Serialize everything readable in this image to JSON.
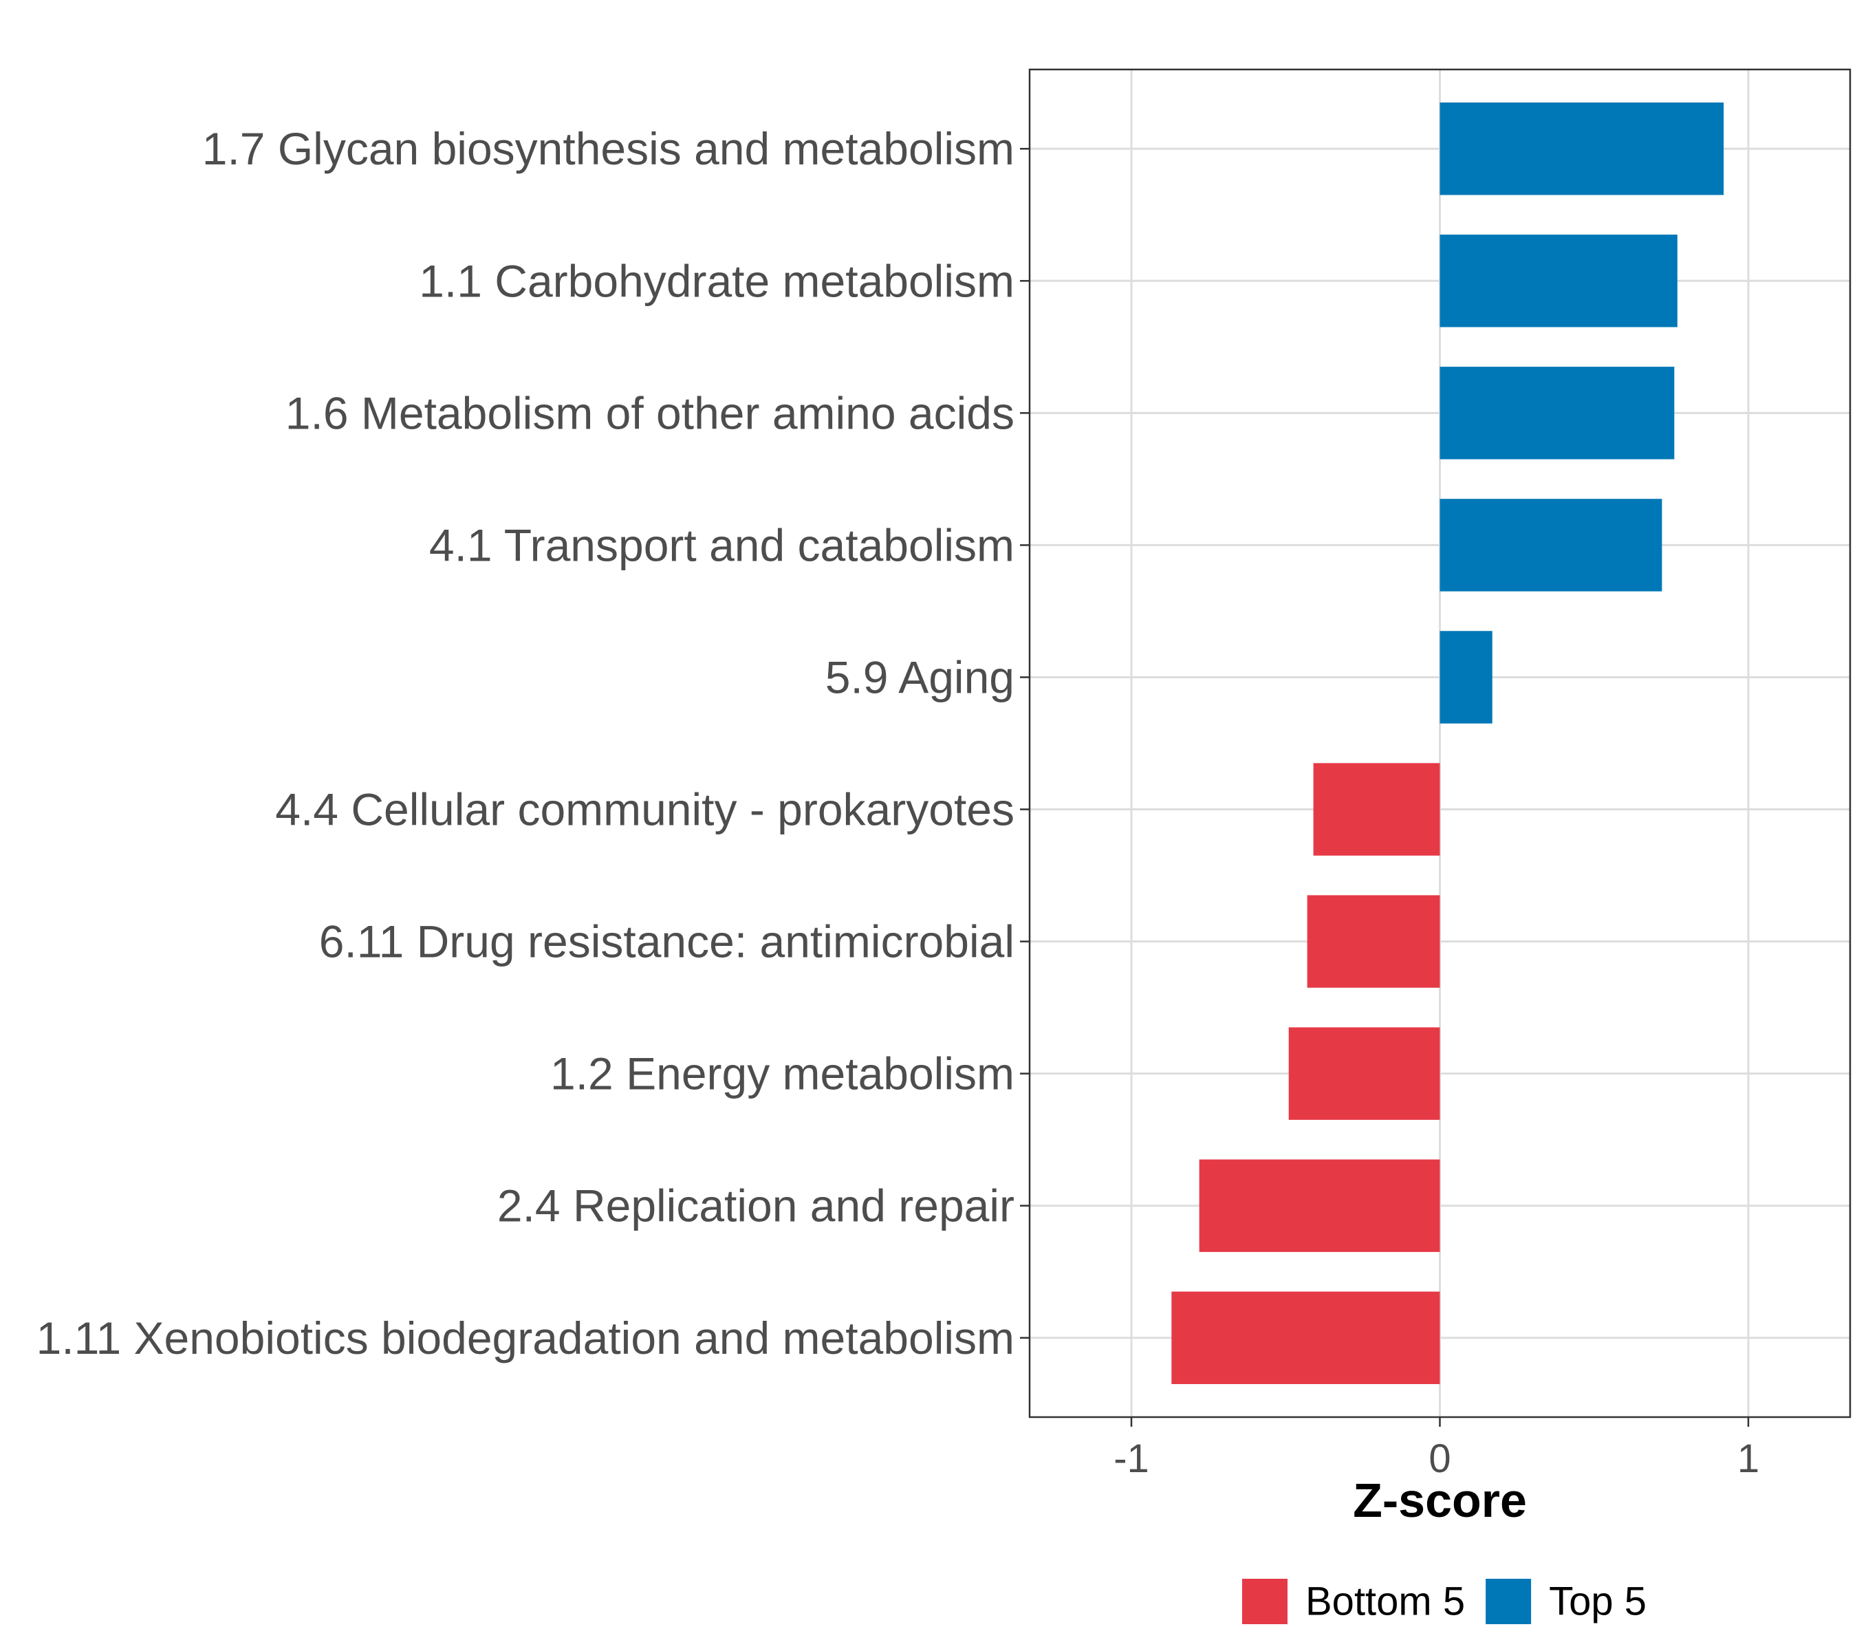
{
  "chart_data": {
    "type": "bar",
    "orientation": "horizontal",
    "title": "",
    "xlabel": "Z-score",
    "ylabel": "",
    "xlim": [
      -1.33,
      1.33
    ],
    "xticks": [
      -1,
      0,
      1
    ],
    "xtick_labels": [
      "-1",
      "0",
      "1"
    ],
    "grid": true,
    "legend_position": "bottom",
    "categories": [
      "1.7 Glycan biosynthesis and metabolism",
      "1.1 Carbohydrate metabolism",
      "1.6 Metabolism of other amino acids",
      "4.1 Transport and catabolism",
      "5.9 Aging",
      "4.4 Cellular community - prokaryotes",
      "6.11 Drug resistance: antimicrobial",
      "1.2 Energy metabolism",
      "2.4 Replication and repair",
      "1.11 Xenobiotics biodegradation and metabolism"
    ],
    "values": [
      0.92,
      0.77,
      0.76,
      0.72,
      0.17,
      -0.41,
      -0.43,
      -0.49,
      -0.78,
      -0.87
    ],
    "groups": [
      "Top 5",
      "Top 5",
      "Top 5",
      "Top 5",
      "Top 5",
      "Bottom 5",
      "Bottom 5",
      "Bottom 5",
      "Bottom 5",
      "Bottom 5"
    ],
    "legend": [
      {
        "label": "Bottom 5",
        "color": "#e63946"
      },
      {
        "label": "Top 5",
        "color": "#0077b6"
      }
    ]
  }
}
